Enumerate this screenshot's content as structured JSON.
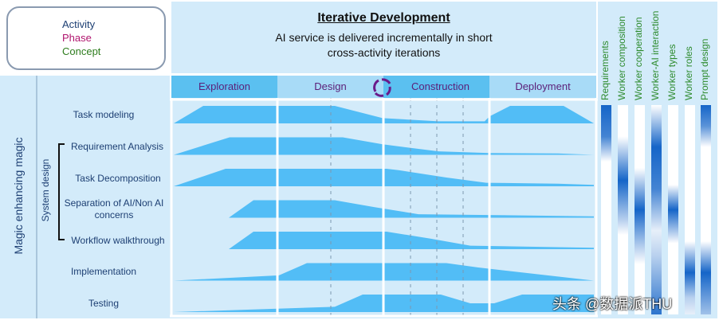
{
  "legend": {
    "activity": "Activity",
    "phase": "Phase",
    "concept": "Concept",
    "colors": {
      "activity": "#1d3f73",
      "phase": "#b0156e",
      "concept": "#2e7d1e"
    }
  },
  "header": {
    "title": "Iterative Development",
    "subtitle_line1": "AI service is delivered incrementally in short",
    "subtitle_line2": "cross-activity iterations"
  },
  "left": {
    "group": "Magic enhancing magic",
    "subgroup": "System design"
  },
  "phases": [
    "Exploration",
    "Design",
    "Construction",
    "Deployment"
  ],
  "iteration_icon": "cycle-arrows-icon",
  "activities": [
    "Task modeling",
    "Requirement Analysis",
    "Task Decomposition",
    "Separation of AI/Non AI concerns",
    "Workflow walkthrough",
    "Implementation",
    "Testing"
  ],
  "concepts": [
    "Requirements",
    "Worker composition",
    "Worker cooperation",
    "Worker-AI interaction",
    "Worker types",
    "Worker roles",
    "Prompt design"
  ],
  "watermark": "头条 @数据派THU",
  "colors": {
    "activity_fill": "#52bdf6",
    "background": "#d3ebfa",
    "heat": "#1565c8"
  }
}
